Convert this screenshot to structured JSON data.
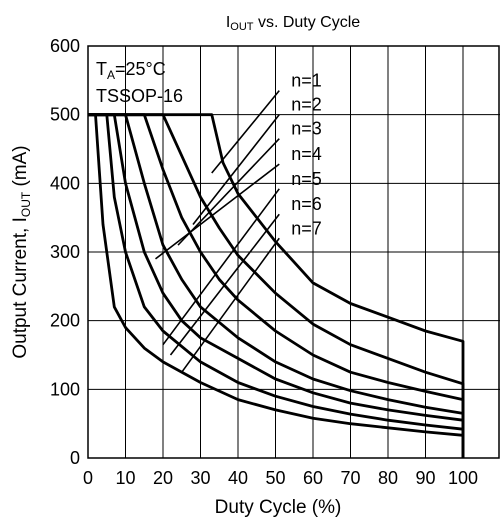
{
  "chart_data": {
    "type": "line",
    "title": {
      "main": "I",
      "sub": "OUT",
      "rest": " vs. Duty  Cycle"
    },
    "xlabel": "Duty Cycle  (%)",
    "ylabel": {
      "main": "Output Current, I",
      "sub": "OUT",
      "rest": " (mA)"
    },
    "xlim": [
      0,
      110
    ],
    "ylim": [
      0,
      600
    ],
    "xticks": [
      0,
      10,
      20,
      30,
      40,
      50,
      60,
      70,
      80,
      90,
      100
    ],
    "yticks": [
      0,
      100,
      200,
      300,
      400,
      500,
      600
    ],
    "grid": true,
    "annotation": {
      "line1": {
        "main": "T",
        "sub": "A",
        "rest": "=25°C"
      },
      "line2": "TSSOP-16"
    },
    "series": [
      {
        "name": "n=1",
        "label_at": [
          33,
          415
        ],
        "x": [
          0,
          33,
          36,
          40,
          45,
          50,
          55,
          60,
          70,
          80,
          90,
          100,
          100
        ],
        "y": [
          500,
          500,
          430,
          385,
          350,
          315,
          285,
          255,
          225,
          205,
          185,
          170,
          0
        ]
      },
      {
        "name": "n=2",
        "label_at": [
          28,
          340
        ],
        "x": [
          0,
          20,
          25,
          30,
          35,
          40,
          50,
          60,
          70,
          80,
          90,
          100,
          100
        ],
        "y": [
          500,
          500,
          440,
          380,
          335,
          295,
          240,
          195,
          165,
          145,
          125,
          108,
          0
        ]
      },
      {
        "name": "n=3",
        "label_at": [
          24,
          310
        ],
        "x": [
          0,
          15,
          20,
          25,
          30,
          35,
          40,
          50,
          60,
          70,
          80,
          90,
          100,
          100
        ],
        "y": [
          500,
          500,
          420,
          350,
          300,
          260,
          230,
          185,
          150,
          125,
          110,
          97,
          85,
          0
        ]
      },
      {
        "name": "n=4",
        "label_at": [
          18,
          290
        ],
        "x": [
          0,
          10,
          15,
          20,
          25,
          30,
          40,
          50,
          60,
          70,
          80,
          90,
          100,
          100
        ],
        "y": [
          500,
          500,
          400,
          310,
          260,
          220,
          175,
          140,
          115,
          98,
          85,
          74,
          65,
          0
        ]
      },
      {
        "name": "n=5",
        "label_at": [
          20,
          165
        ],
        "x": [
          0,
          7,
          10,
          15,
          20,
          25,
          30,
          40,
          50,
          60,
          70,
          80,
          90,
          100,
          100
        ],
        "y": [
          500,
          500,
          400,
          300,
          240,
          200,
          175,
          145,
          115,
          95,
          80,
          70,
          62,
          55,
          0
        ]
      },
      {
        "name": "n=6",
        "label_at": [
          22,
          150
        ],
        "x": [
          0,
          5,
          7,
          10,
          15,
          20,
          30,
          40,
          50,
          60,
          70,
          80,
          90,
          100,
          100
        ],
        "y": [
          500,
          500,
          380,
          300,
          220,
          185,
          140,
          110,
          90,
          75,
          64,
          55,
          48,
          42,
          0
        ]
      },
      {
        "name": "n=7",
        "label_at": [
          25,
          125
        ],
        "x": [
          0,
          2,
          4,
          7,
          10,
          15,
          20,
          30,
          40,
          50,
          60,
          70,
          80,
          90,
          100,
          100
        ],
        "y": [
          500,
          500,
          340,
          220,
          190,
          160,
          140,
          110,
          85,
          70,
          58,
          50,
          44,
          38,
          33,
          0
        ]
      }
    ],
    "leader_tips": [
      [
        51,
        535
      ],
      [
        51,
        500
      ],
      [
        51,
        465
      ],
      [
        51,
        428
      ],
      [
        51,
        392
      ],
      [
        51,
        355
      ],
      [
        51,
        320
      ]
    ],
    "line_color": "#000000"
  }
}
